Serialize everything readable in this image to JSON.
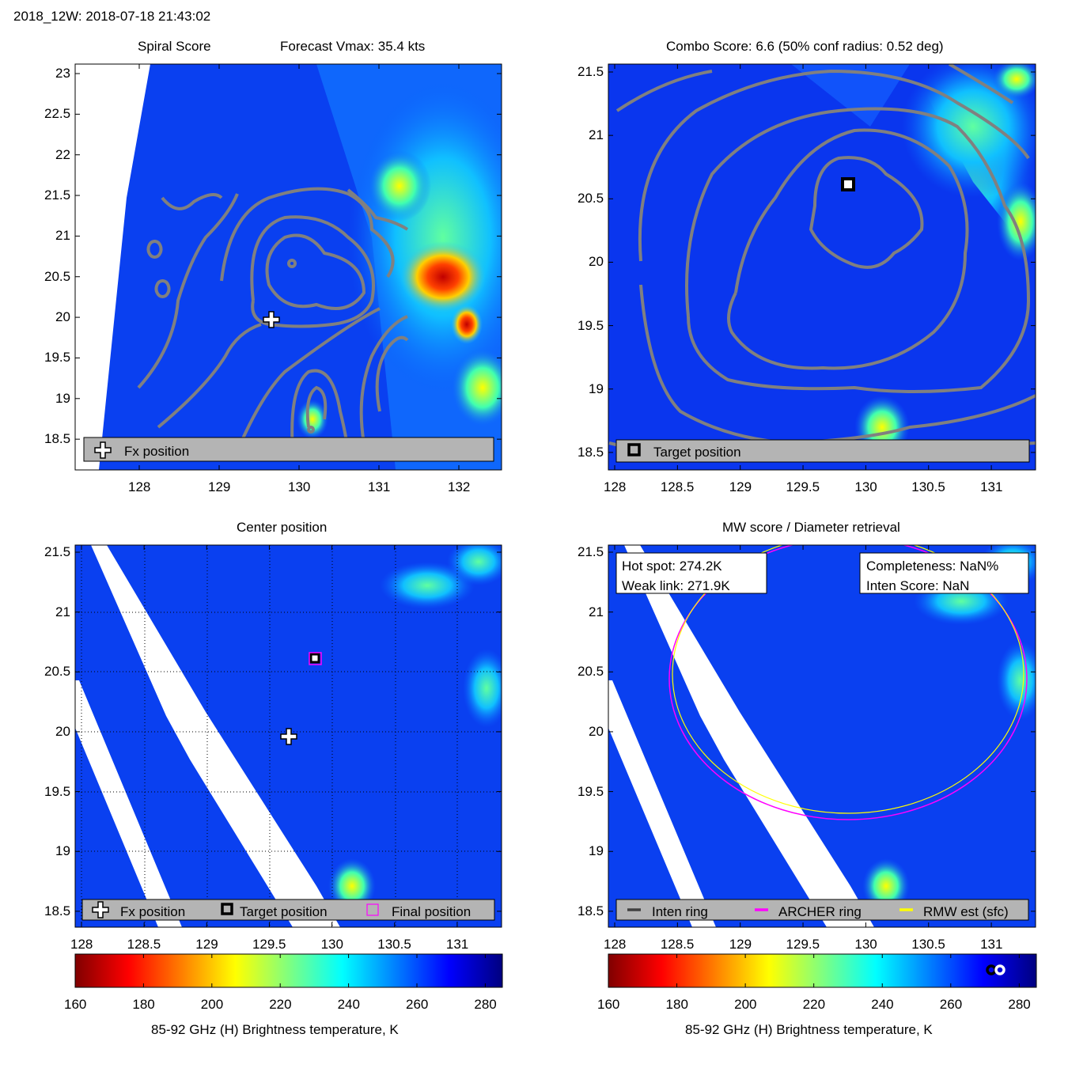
{
  "figure_title": "2018_12W: 2018-07-18 21:43:02",
  "colors": {
    "base_blue": "#0a32ee",
    "contour": "#808080",
    "archer_ring": "#ff00ff",
    "rmw_ring": "#ffff00",
    "inten_ring": "#404040",
    "legend_bg": "#b4b4b4"
  },
  "panels": [
    {
      "title_left": "Spiral Score",
      "title_right": "Forecast Vmax: 35.4 kts",
      "legend": [
        "Fx position"
      ]
    },
    {
      "title": "Combo Score: 6.6  (50% conf radius: 0.52 deg)",
      "legend": [
        "Target position"
      ]
    },
    {
      "title": "Center position",
      "legend": [
        "Fx position",
        "Target position",
        "Final position"
      ]
    },
    {
      "title": "MW score / Diameter retrieval",
      "legend": [
        "Inten ring",
        "ARCHER ring",
        "RMW est (sfc)"
      ],
      "info_left": [
        "Hot spot: 274.2K",
        "Weak link: 271.9K"
      ],
      "info_right": [
        "Completeness: NaN%",
        "Inten Score: NaN"
      ]
    }
  ],
  "chart_data": [
    {
      "type": "heatmap",
      "title": "Spiral Score",
      "xlim": [
        127.2,
        132.55
      ],
      "ylim": [
        18.1,
        23.1
      ],
      "xticks": [
        "128",
        "129",
        "130",
        "131",
        "132"
      ],
      "yticks": [
        "23",
        "22.5",
        "22",
        "21.5",
        "21",
        "20.5",
        "20",
        "19.5",
        "19",
        "18.5"
      ],
      "fx_position": [
        129.65,
        19.97
      ]
    },
    {
      "type": "heatmap",
      "title": "Combo Score",
      "xlim": [
        127.95,
        131.35
      ],
      "ylim": [
        18.37,
        21.56
      ],
      "xticks": [
        "128",
        "128.5",
        "129",
        "129.5",
        "130",
        "130.5",
        "131"
      ],
      "yticks": [
        "21.5",
        "21",
        "20.5",
        "20",
        "19.5",
        "19",
        "18.5"
      ],
      "target_position": [
        129.87,
        20.62
      ]
    },
    {
      "type": "heatmap",
      "title": "Center position",
      "xlim": [
        127.95,
        131.35
      ],
      "ylim": [
        18.37,
        21.56
      ],
      "xticks": [
        "128",
        "128.5",
        "129",
        "129.5",
        "130",
        "130.5",
        "131"
      ],
      "yticks": [
        "21.5",
        "21",
        "20.5",
        "20",
        "19.5",
        "19",
        "18.5"
      ],
      "fx_position": [
        129.65,
        19.97
      ],
      "target_position": [
        129.87,
        20.62
      ],
      "final_position": [
        129.87,
        20.62
      ]
    },
    {
      "type": "heatmap",
      "title": "MW score / Diameter retrieval",
      "xlim": [
        127.95,
        131.35
      ],
      "ylim": [
        18.37,
        21.56
      ],
      "xticks": [
        "128",
        "128.5",
        "129",
        "129.5",
        "130",
        "130.5",
        "131"
      ],
      "yticks": [
        "21.5",
        "21",
        "20.5",
        "20",
        "19.5",
        "19",
        "18.5"
      ],
      "archer_ring_center": [
        129.87,
        20.52
      ]
    }
  ],
  "colorbar": {
    "label": "85-92 GHz (H) Brightness temperature, K",
    "ticks": [
      "160",
      "180",
      "200",
      "220",
      "240",
      "260",
      "280"
    ],
    "range": [
      160,
      285
    ],
    "marker_values": [
      273.5,
      275.5
    ]
  }
}
